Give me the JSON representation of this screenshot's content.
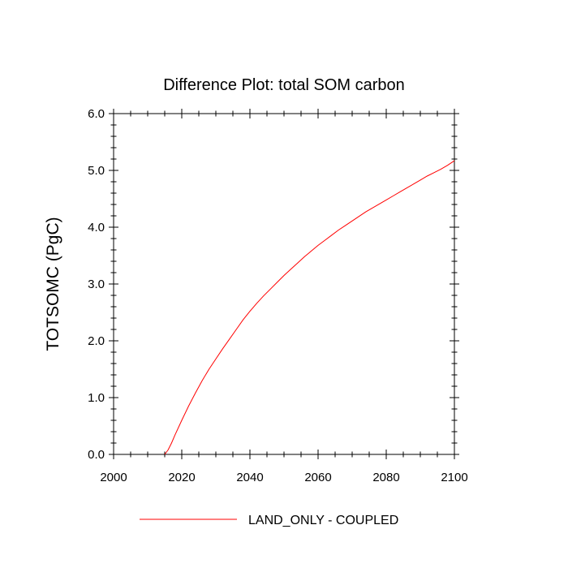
{
  "chart_data": {
    "type": "line",
    "title": "Difference Plot: total SOM carbon",
    "xlabel": "",
    "ylabel": "TOTSOMC  (PgC)",
    "xlim": [
      2000,
      2100
    ],
    "ylim": [
      0.0,
      6.0
    ],
    "x_ticks": [
      2000,
      2020,
      2040,
      2060,
      2080,
      2100
    ],
    "x_tick_labels": [
      "2000",
      "2020",
      "2040",
      "2060",
      "2080",
      "2100"
    ],
    "y_ticks": [
      0.0,
      1.0,
      2.0,
      3.0,
      4.0,
      5.0,
      6.0
    ],
    "y_tick_labels": [
      "0.0",
      "1.0",
      "2.0",
      "3.0",
      "4.0",
      "5.0",
      "6.0"
    ],
    "grid": false,
    "legend": "bottom",
    "series": [
      {
        "name": "LAND_ONLY - COUPLED",
        "color": "#ff0000",
        "x": [
          2015,
          2016,
          2017,
          2018,
          2020,
          2022,
          2024,
          2026,
          2028,
          2030,
          2032,
          2034,
          2036,
          2038,
          2040,
          2042,
          2044,
          2046,
          2048,
          2050,
          2052,
          2054,
          2056,
          2058,
          2060,
          2062,
          2064,
          2066,
          2068,
          2070,
          2072,
          2074,
          2076,
          2078,
          2080,
          2082,
          2084,
          2086,
          2088,
          2090,
          2092,
          2094,
          2096,
          2098,
          2100
        ],
        "y": [
          0.0,
          0.08,
          0.2,
          0.34,
          0.6,
          0.85,
          1.08,
          1.3,
          1.5,
          1.68,
          1.86,
          2.03,
          2.2,
          2.37,
          2.52,
          2.66,
          2.79,
          2.91,
          3.03,
          3.15,
          3.26,
          3.37,
          3.48,
          3.58,
          3.68,
          3.77,
          3.86,
          3.95,
          4.03,
          4.11,
          4.19,
          4.27,
          4.34,
          4.41,
          4.48,
          4.55,
          4.62,
          4.69,
          4.76,
          4.83,
          4.9,
          4.96,
          5.02,
          5.09,
          5.17
        ]
      }
    ]
  }
}
